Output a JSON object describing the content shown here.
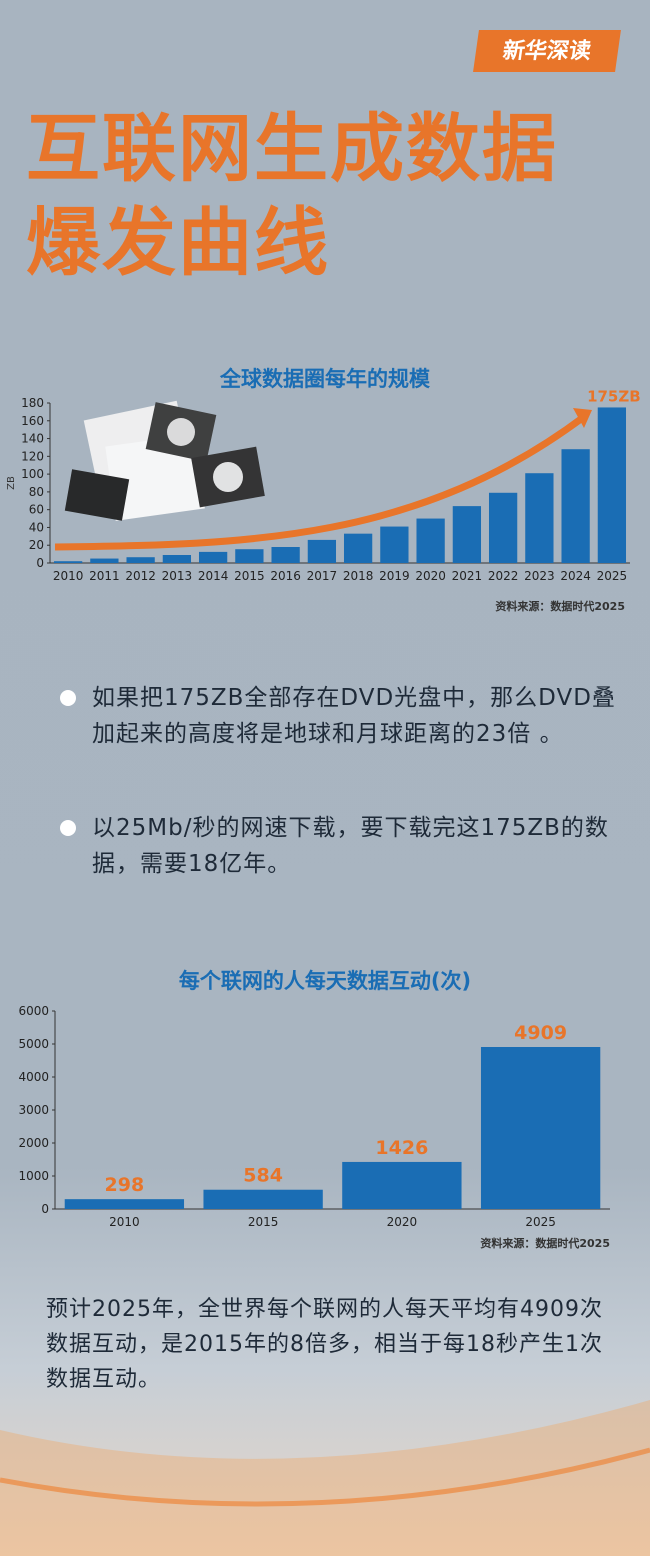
{
  "header": {
    "badge": "新华深读",
    "title_lines": [
      "互联网生成数据",
      "爆发曲线"
    ]
  },
  "chart_data": [
    {
      "type": "bar",
      "title": "全球数据圈每年的规模",
      "y_label": "ZB",
      "annotation": "175ZB",
      "categories": [
        "2010",
        "2011",
        "2012",
        "2013",
        "2014",
        "2015",
        "2016",
        "2017",
        "2018",
        "2019",
        "2020",
        "2021",
        "2022",
        "2023",
        "2024",
        "2025"
      ],
      "values": [
        2,
        5,
        6.5,
        9,
        12.5,
        15.5,
        18,
        26,
        33,
        41,
        50,
        64,
        79,
        101,
        128,
        175
      ],
      "color": "#1a6db4",
      "ylim": [
        0,
        180
      ],
      "yticks": [
        0,
        20,
        40,
        60,
        80,
        100,
        120,
        140,
        160,
        180
      ],
      "source": "资料来源：数据时代2025"
    },
    {
      "type": "bar",
      "title": "每个联网的人每天数据互动(次)",
      "categories": [
        "2010",
        "2015",
        "2020",
        "2025"
      ],
      "values": [
        298,
        584,
        1426,
        4909
      ],
      "color": "#1a6db4",
      "ylim": [
        0,
        6000
      ],
      "yticks": [
        0,
        1000,
        2000,
        3000,
        4000,
        5000,
        6000
      ],
      "source": "资料来源：数据时代2025"
    }
  ],
  "bullets": [
    "如果把175ZB全部存在DVD光盘中，那么DVD叠加起来的高度将是地球和月球距离的23倍 。",
    "以25Mb/秒的网速下载，要下载完这175ZB的数据，需要18亿年。"
  ],
  "summary": "预计2025年，全世界每个联网的人每天平均有4909次数据互动，是2015年的8倍多，相当于每18秒产生1次数据互动。"
}
